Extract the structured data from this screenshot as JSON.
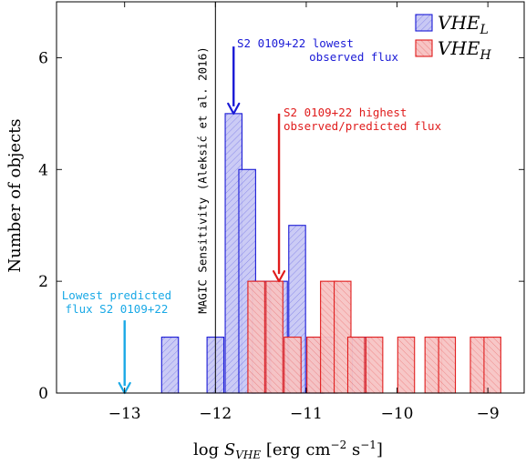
{
  "chart_data": {
    "type": "bar",
    "xlabel": "log S_VHE [erg cm^-2 s^-1]",
    "xlabel_parts": {
      "main": "log ",
      "S": "S",
      "sub": "VHE",
      "units": " [erg cm",
      "exp1": "−2",
      "mid": " s",
      "exp2": "−1",
      "end": "]"
    },
    "ylabel": "Number of objects",
    "xlim": [
      -13.75,
      -8.6
    ],
    "ylim": [
      0,
      7
    ],
    "x_ticks": [
      -13,
      -12,
      -11,
      -10,
      -9
    ],
    "x_tick_labels": [
      "−13",
      "−12",
      "−11",
      "−10",
      "−9"
    ],
    "y_ticks": [
      0,
      2,
      4,
      6
    ],
    "y_tick_labels": [
      "0",
      "2",
      "4",
      "6"
    ],
    "bin_width": 0.185,
    "series": [
      {
        "name": "VHE_L",
        "legend": {
          "main": "VHE",
          "sub": "L"
        },
        "fill": "#c8c8f4",
        "stroke": "#1a1ad6",
        "bins": [
          {
            "x": -12.5,
            "count": 1
          },
          {
            "x": -12.0,
            "count": 1
          },
          {
            "x": -11.8,
            "count": 5
          },
          {
            "x": -11.65,
            "count": 4
          },
          {
            "x": -11.5,
            "count": 2
          },
          {
            "x": -11.3,
            "count": 2
          },
          {
            "x": -11.1,
            "count": 3
          },
          {
            "x": -10.9,
            "count": 1
          },
          {
            "x": -10.75,
            "count": 1
          },
          {
            "x": -10.4,
            "count": 1
          }
        ]
      },
      {
        "name": "VHE_H",
        "legend": {
          "main": "VHE",
          "sub": "H"
        },
        "fill": "#f7c4c4",
        "stroke": "#e01c1c",
        "bins": [
          {
            "x": -11.55,
            "count": 2
          },
          {
            "x": -11.35,
            "count": 2
          },
          {
            "x": -11.15,
            "count": 1
          },
          {
            "x": -10.9,
            "count": 1
          },
          {
            "x": -10.75,
            "count": 2
          },
          {
            "x": -10.6,
            "count": 2
          },
          {
            "x": -10.45,
            "count": 1
          },
          {
            "x": -10.25,
            "count": 1
          },
          {
            "x": -9.9,
            "count": 1
          },
          {
            "x": -9.6,
            "count": 1
          },
          {
            "x": -9.45,
            "count": 1
          },
          {
            "x": -9.1,
            "count": 1
          },
          {
            "x": -8.95,
            "count": 1
          }
        ]
      }
    ],
    "sensitivity_line": {
      "x": -12.0,
      "label": "MAGIC Sensitivity (Aleksić et al. 2016)",
      "color": "#000000"
    },
    "annotations": [
      {
        "lines": [
          "S2 0109+22 lowest",
          "observed flux"
        ],
        "color": "#1a1ad6",
        "arrow_x": -11.8,
        "arrow_from_y": 6.2,
        "arrow_to_y": 5.0
      },
      {
        "lines": [
          "S2 0109+22 highest",
          "observed/predicted flux"
        ],
        "color": "#e01c1c",
        "arrow_x": -11.3,
        "arrow_from_y": 5.0,
        "arrow_to_y": 2.0
      },
      {
        "lines": [
          "Lowest predicted",
          "flux S2 0109+22"
        ],
        "color": "#1aa9e6",
        "arrow_x": -13.0,
        "arrow_from_y": 1.3,
        "arrow_to_y": 0.0
      }
    ]
  }
}
